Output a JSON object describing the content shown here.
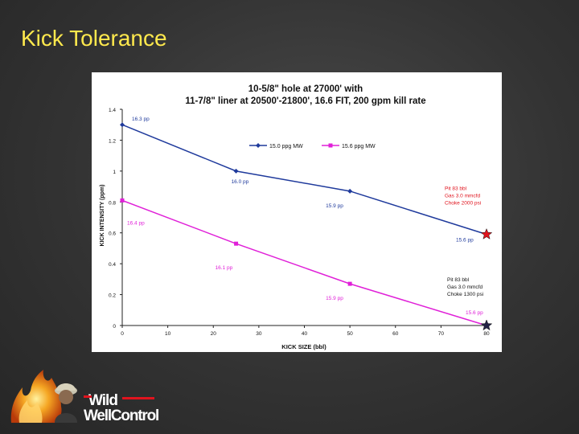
{
  "slide": {
    "title": "Kick Tolerance"
  },
  "logo": {
    "text_line1": "Wild",
    "text_line2": "WellControl"
  },
  "colors": {
    "title": "#ffe94d",
    "series1": "#1f3a9c",
    "series2": "#e020d8",
    "star_red": "#e0141e",
    "star_dark": "#222244"
  },
  "chart_data": {
    "type": "line",
    "title": "10-5/8\" hole at 27000' with",
    "subtitle": "11-7/8\" liner at 20500'-21800', 16.6 FIT, 200 gpm kill rate",
    "xlabel": "KICK SIZE (bbl)",
    "ylabel": "KICK INTENSITY (ppm)",
    "xlim": [
      0,
      80
    ],
    "ylim": [
      0,
      1.4
    ],
    "xticks": [
      0,
      10,
      20,
      30,
      40,
      50,
      60,
      70,
      80
    ],
    "yticks": [
      0,
      0.2,
      0.4,
      0.6,
      0.8,
      1,
      1.2,
      1.4
    ],
    "legend_placement": "top-center",
    "grid": false,
    "series": [
      {
        "name": "15.0 ppg MW",
        "color": "#1f3a9c",
        "marker": "diamond",
        "x": [
          0,
          25,
          50,
          80
        ],
        "y": [
          1.3,
          1.0,
          0.87,
          0.59
        ]
      },
      {
        "name": "15.6 ppg MW",
        "color": "#e020d8",
        "marker": "square",
        "x": [
          0,
          25,
          50,
          80
        ],
        "y": [
          0.81,
          0.53,
          0.27,
          0.0
        ]
      }
    ],
    "point_labels": [
      {
        "text": "16.3 pp",
        "color": "#1f3a9c",
        "x": 0,
        "y": 1.3
      },
      {
        "text": "16.0 pp",
        "color": "#1f3a9c",
        "x": 25,
        "y": 1.0
      },
      {
        "text": "15.9 pp",
        "color": "#1f3a9c",
        "x": 50,
        "y": 0.87
      },
      {
        "text": "15.6 pp",
        "color": "#1f3a9c",
        "x": 80,
        "y": 0.59
      },
      {
        "text": "16.4 pp",
        "color": "#e020d8",
        "x": 0,
        "y": 0.81
      },
      {
        "text": "16.1 pp",
        "color": "#e020d8",
        "x": 25,
        "y": 0.53
      },
      {
        "text": "15.9 pp",
        "color": "#e020d8",
        "x": 50,
        "y": 0.27
      },
      {
        "text": "15.6 pp",
        "color": "#e020d8",
        "x": 80,
        "y": 0.0
      }
    ],
    "annotations": [
      {
        "lines": [
          "Pit 83 bbl",
          "Gas 3.0 mmcfd",
          "Choke 2000 psi"
        ],
        "color": "#e0141e",
        "anchor_x": 80,
        "anchor_y": 0.59
      },
      {
        "lines": [
          "Pit 83 bbl",
          "Gas 3.0 mmcfd",
          "Choke 1300 psi"
        ],
        "color": "#111111",
        "anchor_x": 80,
        "anchor_y": 0.0
      }
    ],
    "end_markers": [
      {
        "shape": "star",
        "color": "#e0141e",
        "x": 80,
        "y": 0.59
      },
      {
        "shape": "star",
        "color": "#222244",
        "x": 80,
        "y": 0.0
      }
    ]
  }
}
